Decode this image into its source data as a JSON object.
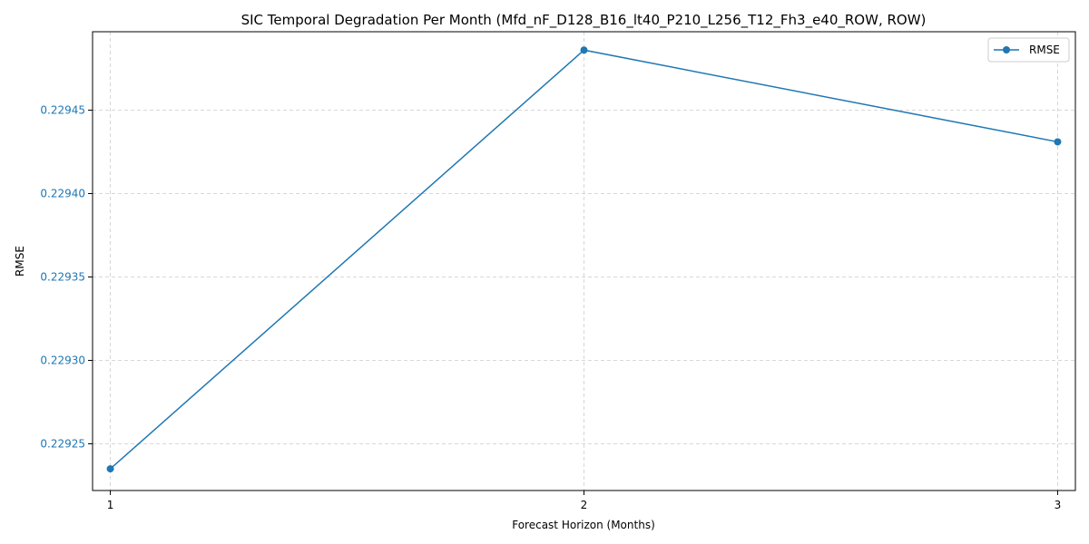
{
  "colors": {
    "series": "#1f77b4",
    "ytick_label": "#1f77b4",
    "grid": "#cccccc",
    "background": "#ffffff"
  },
  "chart_data": {
    "type": "line",
    "title": "SIC Temporal Degradation Per Month (Mfd_nF_D128_B16_lt40_P210_L256_T12_Fh3_e40_ROW, ROW)",
    "xlabel": "Forecast Horizon (Months)",
    "ylabel": "RMSE",
    "x": [
      1,
      2,
      3
    ],
    "x_ticks": [
      "1",
      "2",
      "3"
    ],
    "y_ticks": [
      "0.22925",
      "0.22930",
      "0.22935",
      "0.22940",
      "0.22945"
    ],
    "y_tick_values": [
      0.22925,
      0.2293,
      0.22935,
      0.2294,
      0.22945
    ],
    "xlim": [
      0.9625,
      3.0375
    ],
    "ylim": [
      0.229222,
      0.229497
    ],
    "series": [
      {
        "name": "RMSE",
        "values": [
          0.229235,
          0.229486,
          0.229431
        ],
        "marker": "circle"
      }
    ],
    "grid": true,
    "legend": "top-right"
  }
}
